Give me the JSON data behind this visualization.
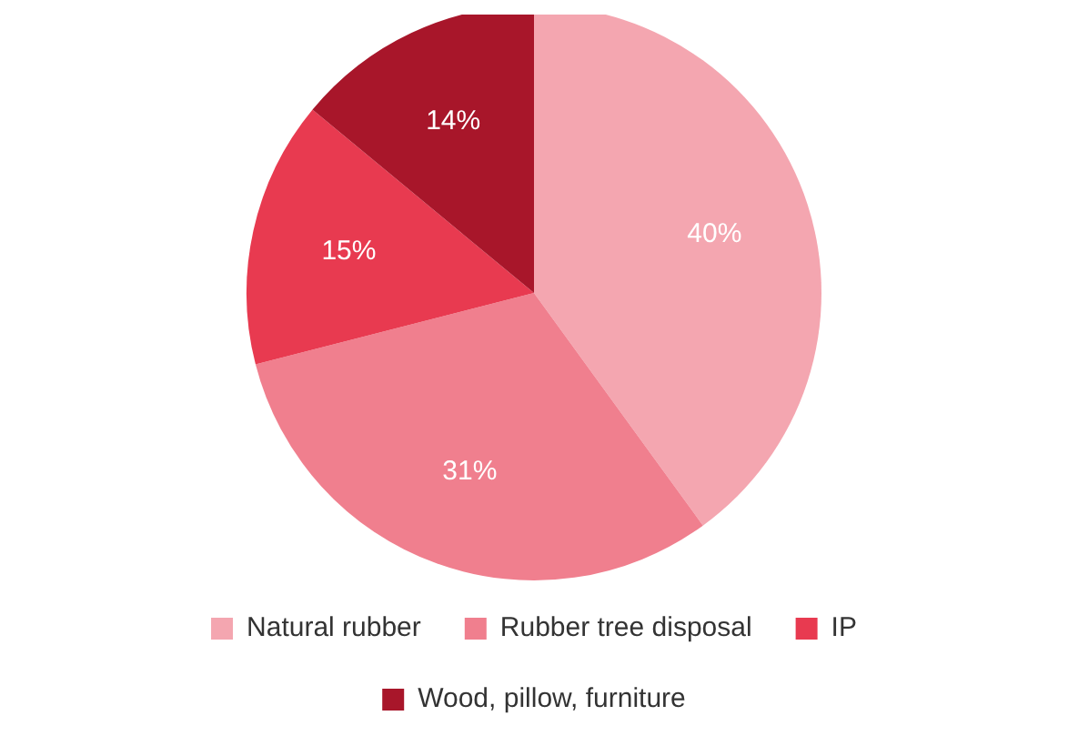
{
  "chart_data": {
    "type": "pie",
    "categories": [
      "Natural rubber",
      "Rubber tree disposal",
      "IP",
      "Wood, pillow, furniture"
    ],
    "values": [
      40,
      31,
      15,
      14
    ],
    "colors": [
      "#f4a6b0",
      "#f07f8e",
      "#e83a50",
      "#a8162a"
    ],
    "value_labels": [
      "40%",
      "31%",
      "15%",
      "14%"
    ],
    "legend": "bottom"
  }
}
